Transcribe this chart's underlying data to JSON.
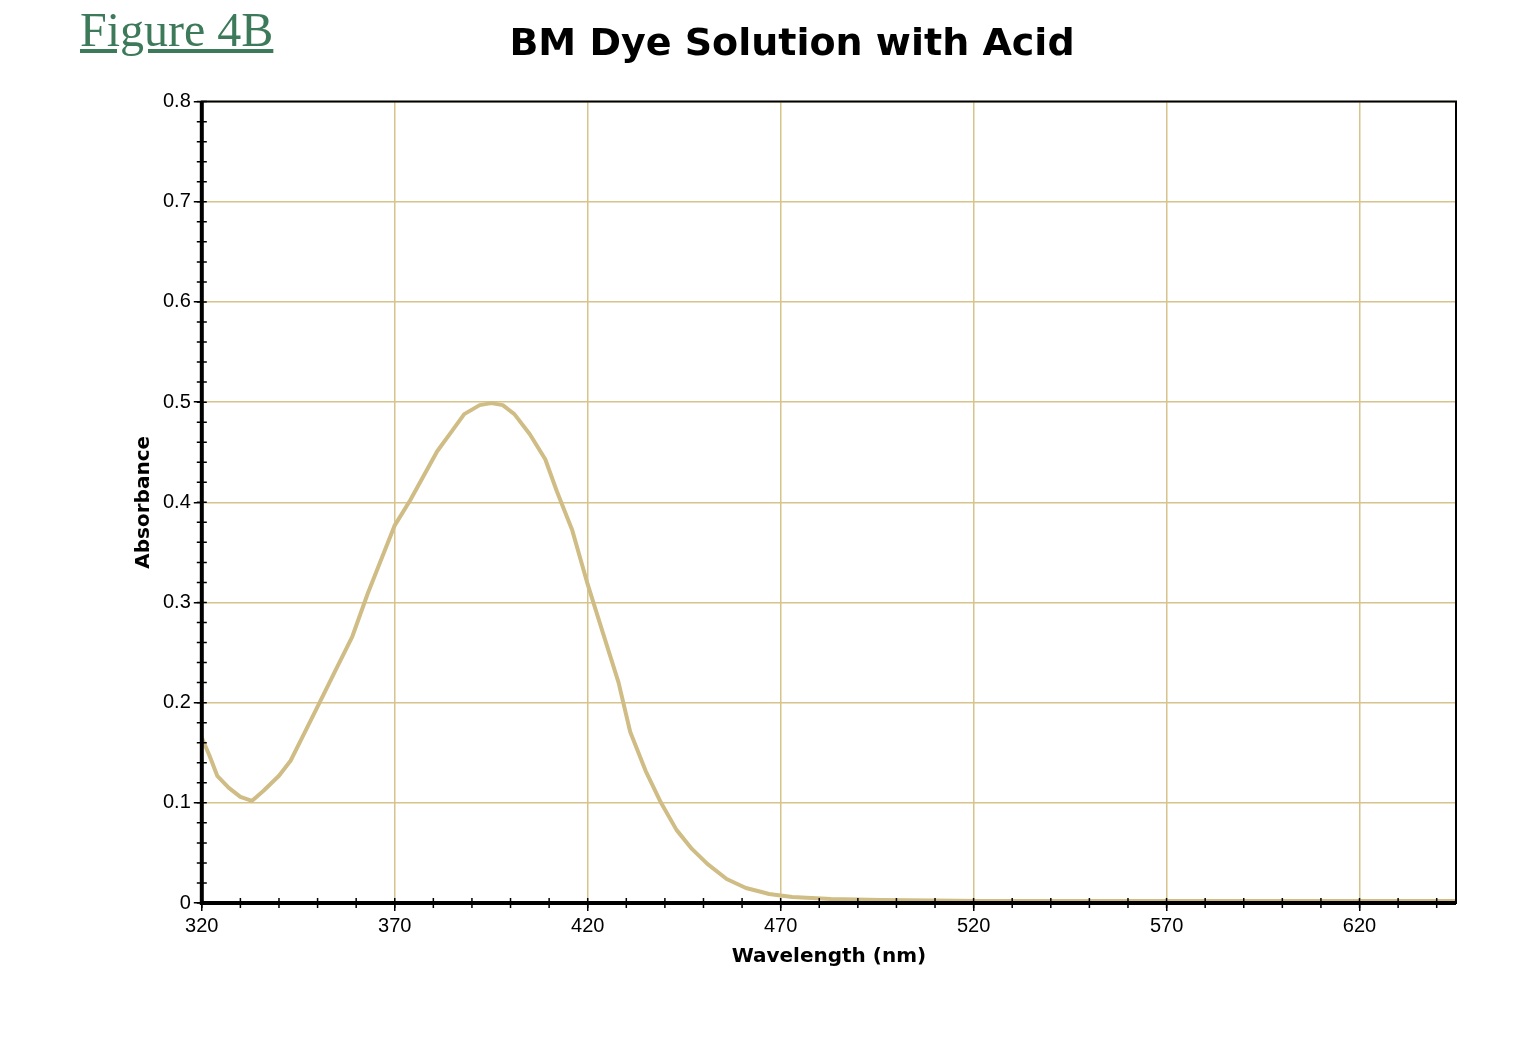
{
  "chart_data": {
    "type": "line",
    "title": "BM Dye Solution with Acid",
    "xlabel": "Wavelength (nm)",
    "ylabel": "Absorbance",
    "annotations": [
      "Figure 4B"
    ],
    "x": [
      320,
      322,
      324,
      327,
      330,
      333,
      336,
      340,
      343,
      346,
      350,
      355,
      359,
      363,
      367,
      370,
      374,
      377,
      381,
      385,
      388,
      392,
      395,
      398,
      401,
      405,
      409,
      412,
      416,
      420,
      424,
      428,
      431,
      435,
      439,
      443,
      447,
      451,
      456,
      461,
      467,
      473,
      483,
      496,
      522,
      645
    ],
    "series": [
      {
        "color": "#cfbd85",
        "values": [
          0.165,
          0.147,
          0.127,
          0.115,
          0.106,
          0.102,
          0.112,
          0.127,
          0.142,
          0.165,
          0.196,
          0.235,
          0.266,
          0.309,
          0.348,
          0.377,
          0.402,
          0.423,
          0.451,
          0.472,
          0.488,
          0.497,
          0.499,
          0.497,
          0.488,
          0.468,
          0.443,
          0.411,
          0.372,
          0.318,
          0.269,
          0.22,
          0.171,
          0.132,
          0.1,
          0.073,
          0.054,
          0.039,
          0.024,
          0.015,
          0.009,
          0.006,
          0.004,
          0.003,
          0.002,
          0.002
        ]
      }
    ],
    "xlim": [
      320,
      645
    ],
    "xticks": [
      320,
      370,
      420,
      470,
      520,
      570,
      620
    ],
    "ylim": [
      0,
      0.8
    ],
    "yticks": [
      0,
      0.1,
      0.2,
      0.3,
      0.4,
      0.5,
      0.6,
      0.7,
      0.8
    ],
    "grid": true,
    "legend": false,
    "marker": "none",
    "line_style": "solid"
  }
}
